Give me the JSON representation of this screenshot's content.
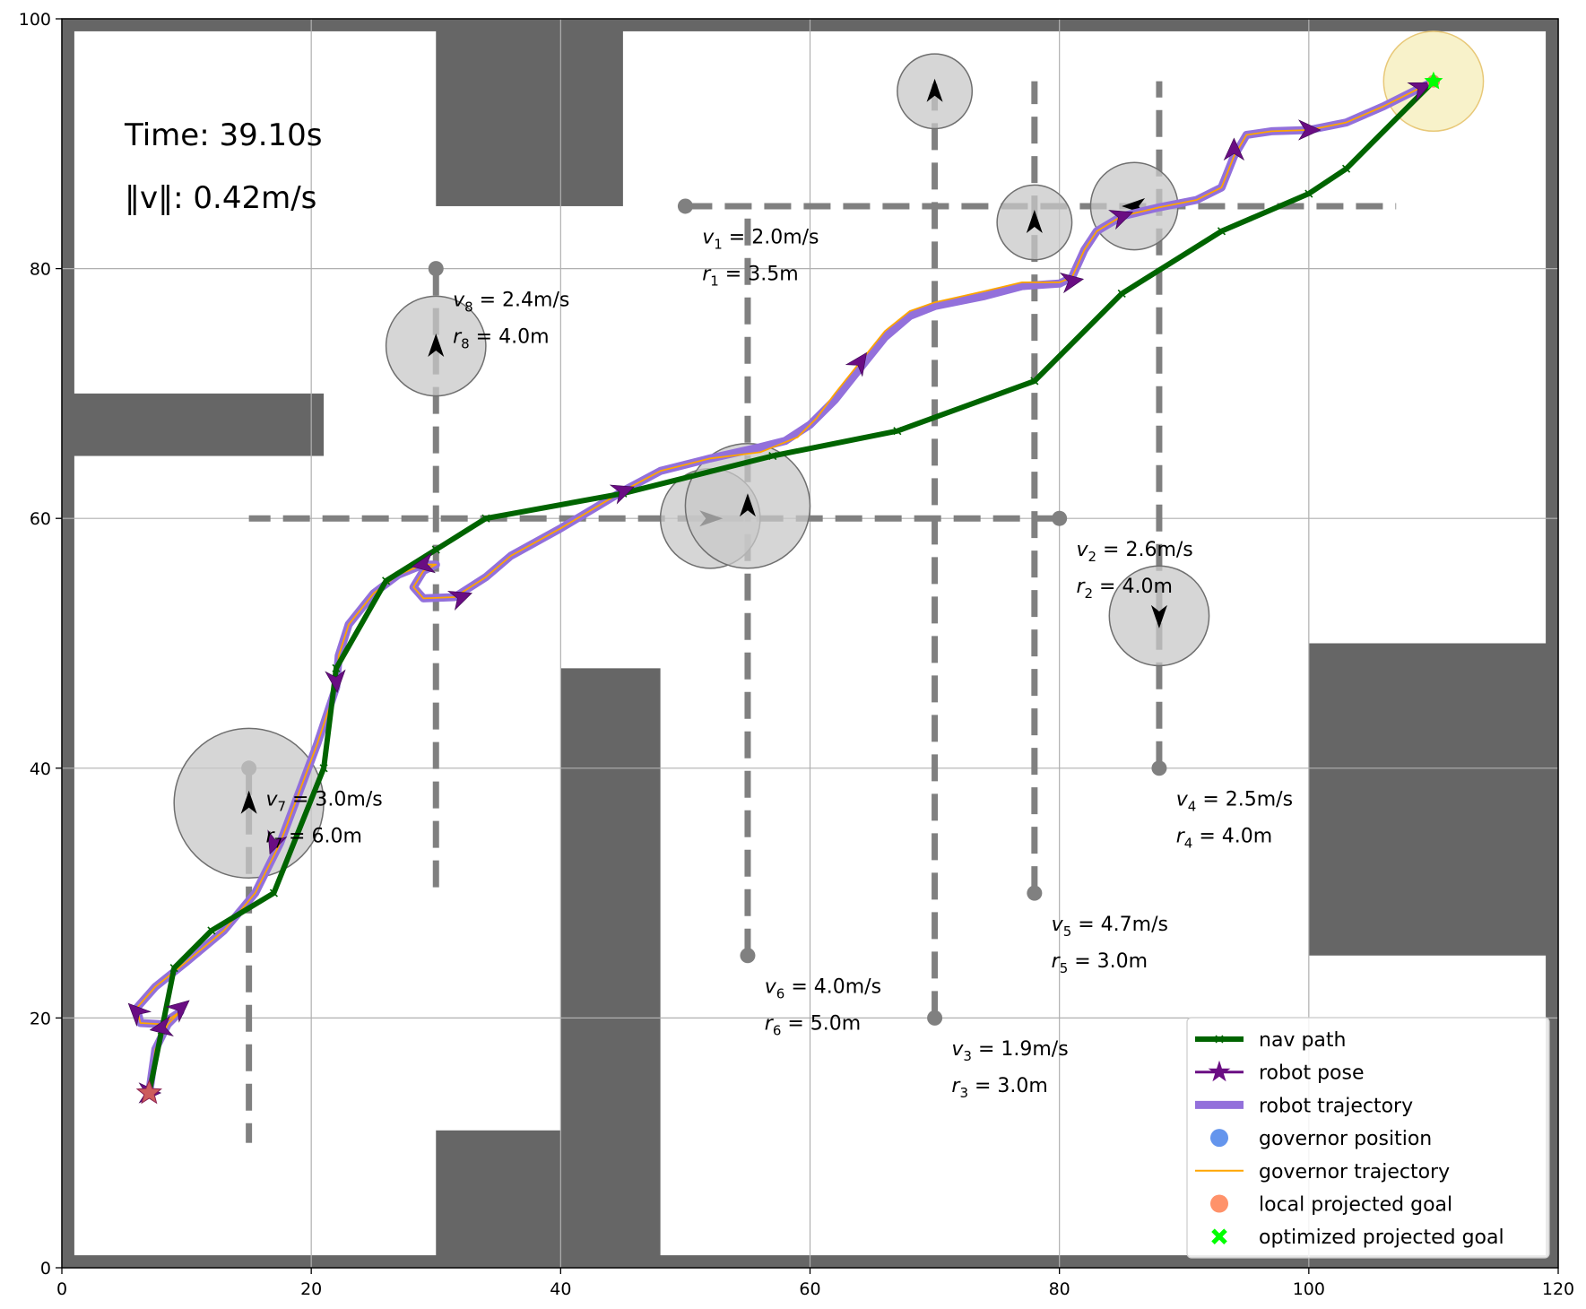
{
  "chart_data": {
    "type": "line",
    "title": "",
    "xlabel": "",
    "ylabel": "",
    "xlim": [
      0,
      120
    ],
    "ylim": [
      0,
      100
    ],
    "xticks": [
      0,
      20,
      40,
      60,
      80,
      100,
      120
    ],
    "yticks": [
      0,
      20,
      40,
      60,
      80,
      100
    ],
    "grid": true,
    "legend_position": "bottom-right",
    "time_text": "Time: 39.10s",
    "speed_text": "‖v‖: 0.42m/s",
    "colors": {
      "wall": "#666666",
      "nav_path": "#006400",
      "robot_pose": "#6a0d83",
      "robot_trajectory": "#9370db",
      "governor_position": "#6495ed",
      "governor_trajectory": "#ffa500",
      "local_goal": "#ff7f50",
      "optimized_goal": "#00ff00",
      "obstacle_fill": "#c8c8c8",
      "obstacle_track": "#808080",
      "goal_region": "#f5eeb8"
    },
    "walls": [
      {
        "x0": 0,
        "y0": 0,
        "x1": 120,
        "y1": 1
      },
      {
        "x0": 0,
        "y0": 99,
        "x1": 120,
        "y1": 100
      },
      {
        "x0": 0,
        "y0": 0,
        "x1": 1,
        "y1": 100
      },
      {
        "x0": 119,
        "y0": 0,
        "x1": 120,
        "y1": 100
      },
      {
        "x0": 30,
        "y0": 85,
        "x1": 45,
        "y1": 100
      },
      {
        "x0": 0,
        "y0": 65,
        "x1": 21,
        "y1": 70
      },
      {
        "x0": 40,
        "y0": 0,
        "x1": 48,
        "y1": 48
      },
      {
        "x0": 30,
        "y0": 0,
        "x1": 40,
        "y1": 11
      },
      {
        "x0": 100,
        "y0": 25,
        "x1": 120,
        "y1": 50
      }
    ],
    "obstacles": [
      {
        "id": 1,
        "v_label": "v",
        "v_sub": "1",
        "v_text": " = 2.0m/s",
        "r_label": "r",
        "r_sub": "1",
        "r_text": " = 3.5m",
        "track": [
          [
            50,
            85
          ],
          [
            107,
            85
          ]
        ],
        "pos": [
          86,
          85
        ],
        "radius": 3.5,
        "dir": "left",
        "label_at": [
          52,
          82
        ]
      },
      {
        "id": 2,
        "v_label": "v",
        "v_sub": "2",
        "v_text": " = 2.6m/s",
        "r_label": "r",
        "r_sub": "2",
        "r_text": " = 4.0m",
        "track": [
          [
            80,
            60
          ],
          [
            15,
            60
          ]
        ],
        "pos": [
          52,
          60
        ],
        "radius": 4.0,
        "dir": "right",
        "label_at": [
          82,
          57
        ]
      },
      {
        "id": 3,
        "v_label": "v",
        "v_sub": "3",
        "v_text": " = 1.9m/s",
        "r_label": "r",
        "r_sub": "3",
        "r_text": " = 3.0m",
        "track": [
          [
            70,
            20
          ],
          [
            70,
            95
          ]
        ],
        "pos": [
          70,
          94.2
        ],
        "radius": 3.0,
        "dir": "up",
        "label_at": [
          72,
          17
        ]
      },
      {
        "id": 4,
        "v_label": "v",
        "v_sub": "4",
        "v_text": " = 2.5m/s",
        "r_label": "r",
        "r_sub": "4",
        "r_text": " = 4.0m",
        "track": [
          [
            88,
            40
          ],
          [
            88,
            95
          ]
        ],
        "pos": [
          88,
          52.2
        ],
        "radius": 4.0,
        "dir": "down",
        "label_at": [
          90,
          37
        ]
      },
      {
        "id": 5,
        "v_label": "v",
        "v_sub": "5",
        "v_text": " = 4.7m/s",
        "r_label": "r",
        "r_sub": "5",
        "r_text": " = 3.0m",
        "track": [
          [
            78,
            30
          ],
          [
            78,
            95
          ]
        ],
        "pos": [
          78,
          83.7
        ],
        "radius": 3.0,
        "dir": "up",
        "label_at": [
          80,
          27
        ]
      },
      {
        "id": 6,
        "v_label": "v",
        "v_sub": "6",
        "v_text": " = 4.0m/s",
        "r_label": "r",
        "r_sub": "6",
        "r_text": " = 5.0m",
        "track": [
          [
            55,
            25
          ],
          [
            55,
            85
          ]
        ],
        "pos": [
          55,
          61
        ],
        "radius": 5.0,
        "dir": "up",
        "label_at": [
          57,
          22
        ]
      },
      {
        "id": 7,
        "v_label": "v",
        "v_sub": "7",
        "v_text": " = 3.0m/s",
        "r_label": "r",
        "r_sub": "7",
        "r_text": " = 6.0m",
        "track": [
          [
            15,
            40
          ],
          [
            15,
            10
          ]
        ],
        "pos": [
          15,
          37.2
        ],
        "radius": 6.0,
        "dir": "up",
        "label_at": [
          17,
          37
        ]
      },
      {
        "id": 8,
        "v_label": "v",
        "v_sub": "8",
        "v_text": " = 2.4m/s",
        "r_label": "r",
        "r_sub": "8",
        "r_text": " = 4.0m",
        "track": [
          [
            30,
            80
          ],
          [
            30,
            30
          ]
        ],
        "pos": [
          30,
          73.8
        ],
        "radius": 4.0,
        "dir": "up",
        "label_at": [
          32,
          77
        ]
      }
    ],
    "goal_region": {
      "center": [
        110,
        95
      ],
      "radius": 4.0
    },
    "series": [
      {
        "name": "nav path",
        "type": "line",
        "points": [
          [
            7,
            14
          ],
          [
            8,
            19
          ],
          [
            9,
            24
          ],
          [
            12,
            27
          ],
          [
            17,
            30
          ],
          [
            21,
            40
          ],
          [
            22,
            48
          ],
          [
            26,
            55
          ],
          [
            30,
            57.5
          ],
          [
            34,
            60
          ],
          [
            45,
            62
          ],
          [
            57,
            65
          ],
          [
            67,
            67
          ],
          [
            78,
            71
          ],
          [
            85,
            78
          ],
          [
            93,
            83
          ],
          [
            100,
            86
          ],
          [
            103,
            88
          ],
          [
            110,
            95
          ]
        ]
      },
      {
        "name": "robot trajectory",
        "type": "line",
        "points": [
          [
            7,
            14
          ],
          [
            7.5,
            17.5
          ],
          [
            8.5,
            19.5
          ],
          [
            9.5,
            20.5
          ],
          [
            8,
            19.5
          ],
          [
            6.3,
            19.6
          ],
          [
            6,
            20.8
          ],
          [
            7.5,
            22.5
          ],
          [
            10,
            24.5
          ],
          [
            13,
            27
          ],
          [
            15.5,
            30
          ],
          [
            17.5,
            34
          ],
          [
            19,
            38
          ],
          [
            20.5,
            42
          ],
          [
            21.5,
            45
          ],
          [
            22,
            46.5
          ],
          [
            22.2,
            49
          ],
          [
            23,
            51.5
          ],
          [
            25,
            54
          ],
          [
            27,
            55.5
          ],
          [
            29,
            56.3
          ],
          [
            30,
            56.3
          ],
          [
            29,
            55.8
          ],
          [
            28.2,
            54.5
          ],
          [
            29,
            53.6
          ],
          [
            31.5,
            53.7
          ],
          [
            34,
            55.3
          ],
          [
            36,
            57
          ],
          [
            40,
            59.2
          ],
          [
            43,
            61
          ],
          [
            45,
            62.2
          ],
          [
            48,
            63.8
          ],
          [
            52,
            64.8
          ],
          [
            56,
            65.7
          ],
          [
            58,
            66.2
          ],
          [
            60,
            67.5
          ],
          [
            62,
            69.5
          ],
          [
            64,
            72
          ],
          [
            66,
            74.5
          ],
          [
            68,
            76.2
          ],
          [
            70,
            77
          ],
          [
            74,
            77.8
          ],
          [
            77,
            78.6
          ],
          [
            80,
            78.8
          ],
          [
            81,
            79.3
          ],
          [
            82,
            81.5
          ],
          [
            83,
            83
          ],
          [
            85,
            84.2
          ],
          [
            88,
            84.9
          ],
          [
            91,
            85.5
          ],
          [
            93,
            86.5
          ],
          [
            94,
            89
          ],
          [
            95,
            90.7
          ],
          [
            97,
            91
          ],
          [
            100,
            91.1
          ],
          [
            103,
            91.7
          ],
          [
            106,
            93
          ],
          [
            109,
            94.5
          ],
          [
            110,
            95
          ]
        ]
      },
      {
        "name": "governor trajectory",
        "type": "line",
        "points": [
          [
            7,
            14
          ],
          [
            7.5,
            17.5
          ],
          [
            8.5,
            19.5
          ],
          [
            9.5,
            20.5
          ],
          [
            8,
            19.5
          ],
          [
            6.3,
            19.6
          ],
          [
            6,
            20.8
          ],
          [
            7.5,
            22.5
          ],
          [
            10,
            24.5
          ],
          [
            13,
            27
          ],
          [
            15.5,
            30
          ],
          [
            17.5,
            34
          ],
          [
            19,
            38
          ],
          [
            20.5,
            42
          ],
          [
            21.5,
            45
          ],
          [
            22,
            46.5
          ],
          [
            22.2,
            49
          ],
          [
            23,
            51.5
          ],
          [
            25,
            54
          ],
          [
            27,
            55.5
          ],
          [
            29,
            56.3
          ],
          [
            30,
            56.3
          ],
          [
            29,
            55.8
          ],
          [
            28.2,
            54.5
          ],
          [
            29,
            53.6
          ],
          [
            31.5,
            53.7
          ],
          [
            34,
            55.3
          ],
          [
            36,
            57
          ],
          [
            40,
            59.2
          ],
          [
            43,
            61
          ],
          [
            45,
            62.2
          ],
          [
            48,
            63.8
          ],
          [
            52,
            64.8
          ],
          [
            56,
            65.3
          ],
          [
            59,
            66.5
          ],
          [
            60.5,
            68
          ],
          [
            62,
            70
          ],
          [
            64,
            72.5
          ],
          [
            66,
            75
          ],
          [
            68,
            76.6
          ],
          [
            70,
            77.3
          ],
          [
            74,
            78.2
          ],
          [
            77,
            78.9
          ],
          [
            80,
            78.9
          ],
          [
            81,
            79.3
          ],
          [
            82,
            81.5
          ],
          [
            83,
            83
          ],
          [
            85,
            84.2
          ],
          [
            88,
            84.9
          ],
          [
            91,
            85.5
          ],
          [
            93,
            86.5
          ],
          [
            94,
            89
          ],
          [
            95,
            90.7
          ],
          [
            97,
            91
          ],
          [
            100,
            91.1
          ],
          [
            103,
            91.7
          ],
          [
            106,
            93
          ],
          [
            109,
            94.5
          ],
          [
            110,
            95
          ]
        ]
      },
      {
        "name": "robot pose",
        "type": "arrows",
        "points": [
          [
            7,
            14,
            0
          ],
          [
            6,
            20.5,
            135
          ],
          [
            9.5,
            20.8,
            40
          ],
          [
            8,
            19.2,
            190
          ],
          [
            17,
            34,
            250
          ],
          [
            22,
            47,
            275
          ],
          [
            29,
            56.3,
            190
          ],
          [
            32,
            53.7,
            20
          ],
          [
            45,
            62.2,
            20
          ],
          [
            64,
            72.5,
            55
          ],
          [
            81,
            79,
            10
          ],
          [
            85,
            84.2,
            20
          ],
          [
            94,
            89.5,
            90
          ],
          [
            100,
            91.1,
            0
          ],
          [
            109,
            94.5,
            25
          ]
        ]
      },
      {
        "name": "governor position",
        "type": "scatter",
        "points": [
          [
            110,
            95
          ]
        ]
      },
      {
        "name": "local projected goal",
        "type": "scatter",
        "points": [
          [
            110,
            95
          ]
        ]
      },
      {
        "name": "optimized projected goal",
        "type": "scatter",
        "points": [
          [
            110,
            95
          ]
        ]
      }
    ],
    "start_marker": [
      7,
      14
    ],
    "legend": [
      "nav path",
      "robot pose",
      "robot trajectory",
      "governor position",
      "governor trajectory",
      "local projected goal",
      "optimized projected goal"
    ]
  }
}
